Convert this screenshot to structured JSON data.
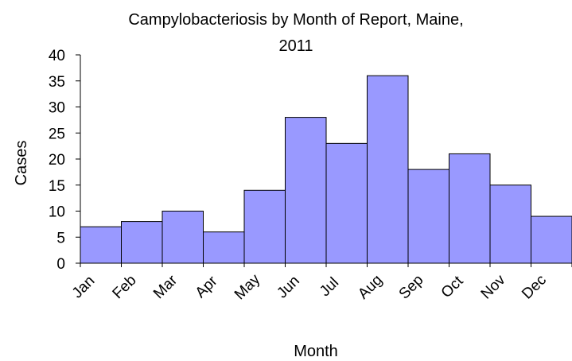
{
  "chart_data": {
    "type": "bar",
    "title_lines": [
      "Campylobacteriosis by Month of Report, Maine,",
      "2011"
    ],
    "xlabel": "Month",
    "ylabel": "Cases",
    "categories": [
      "Jan",
      "Feb",
      "Mar",
      "Apr",
      "May",
      "Jun",
      "Jul",
      "Aug",
      "Sep",
      "Oct",
      "Nov",
      "Dec"
    ],
    "values": [
      7,
      8,
      10,
      6,
      14,
      28,
      23,
      36,
      18,
      21,
      15,
      9
    ],
    "ylim": [
      0,
      40
    ],
    "yticks": [
      0,
      5,
      10,
      15,
      20,
      25,
      30,
      35,
      40
    ],
    "grid": false,
    "legend": "none",
    "bar_color": "#9999ff",
    "bar_edge_color": "#000000"
  }
}
